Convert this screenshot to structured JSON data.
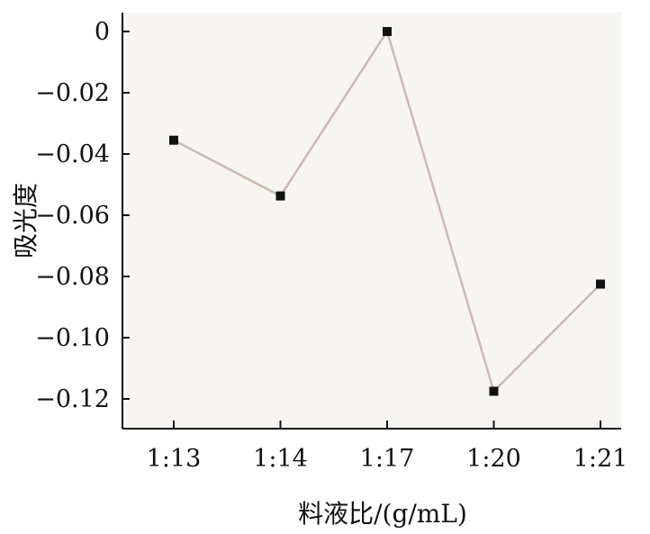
{
  "chart_data": {
    "type": "line",
    "title": "",
    "xlabel": "料液比/(g/mL)",
    "ylabel": "吸光度",
    "categories": [
      "1:13",
      "1:14",
      "1:17",
      "1:20",
      "1:21"
    ],
    "series": [
      {
        "values": [
          -0.0355,
          -0.0537,
          0.0,
          -0.1175,
          -0.0825
        ]
      }
    ],
    "ylim": [
      -0.13,
      0.0
    ],
    "yticks": [
      0,
      -0.02,
      -0.04,
      -0.06,
      -0.08,
      -0.1,
      -0.12
    ],
    "ytick_labels": [
      "0",
      "−0.02",
      "−0.04",
      "−0.06",
      "−0.08",
      "−0.10",
      "−0.12"
    ],
    "grid": false,
    "colors": {
      "plot_background": "#f7f5f1",
      "line": "#c9b9b5",
      "marker": "#111111",
      "axis": "#111111"
    }
  }
}
